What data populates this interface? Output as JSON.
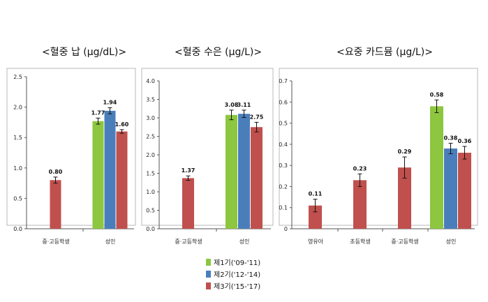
{
  "colors": {
    "series1": "#8dc63f",
    "series2": "#4a7ebb",
    "series3": "#c0504d"
  },
  "legend": [
    {
      "label": "제1기('09-'11)",
      "color": "#8dc63f"
    },
    {
      "label": "제2기('12-'14)",
      "color": "#4a7ebb"
    },
    {
      "label": "제3기('15-'17)",
      "color": "#c0504d"
    }
  ],
  "chart_data": [
    {
      "type": "bar",
      "title": "<혈중 납 (μg/dL)>",
      "categories": [
        "중·고등학생",
        "성인"
      ],
      "yticks": [
        "0.0",
        "0.5",
        "1.0",
        "1.5",
        "2.0",
        "2.5"
      ],
      "ylim": [
        0,
        2.5
      ],
      "series": [
        {
          "name": "제1기('09-'11)",
          "values": [
            null,
            1.77
          ],
          "labels": [
            "",
            "1.77"
          ],
          "err": [
            null,
            0.05
          ]
        },
        {
          "name": "제2기('12-'14)",
          "values": [
            null,
            1.94
          ],
          "labels": [
            "",
            "1.94"
          ],
          "err": [
            null,
            0.05
          ]
        },
        {
          "name": "제3기('15-'17)",
          "values": [
            0.8,
            1.6
          ],
          "labels": [
            "0.80",
            "1.60"
          ],
          "err": [
            0.05,
            0.03
          ]
        }
      ],
      "grid": false
    },
    {
      "type": "bar",
      "title": "<혈중 수은 (μg/L)>",
      "categories": [
        "중·고등학생",
        "성인"
      ],
      "yticks": [
        "0.0",
        "0.5",
        "1.0",
        "1.5",
        "2.0",
        "2.5",
        "3.0",
        "3.5",
        "4.0"
      ],
      "ylim": [
        0,
        4.0
      ],
      "series": [
        {
          "name": "제1기('09-'11)",
          "values": [
            null,
            3.08
          ],
          "labels": [
            "",
            "3.08"
          ],
          "err": [
            null,
            0.13
          ]
        },
        {
          "name": "제2기('12-'14)",
          "values": [
            null,
            3.11
          ],
          "labels": [
            "",
            "3.11"
          ],
          "err": [
            null,
            0.1
          ]
        },
        {
          "name": "제3기('15-'17)",
          "values": [
            1.37,
            2.75
          ],
          "labels": [
            "1.37",
            "2.75"
          ],
          "err": [
            0.06,
            0.13
          ]
        }
      ],
      "grid": false
    },
    {
      "type": "bar",
      "title": "<요중 카드뮴 (μg/L)>",
      "categories": [
        "영유아",
        "초등학생",
        "중·고등학생",
        "성인"
      ],
      "yticks": [
        "0",
        "0.1",
        "0.2",
        "0.3",
        "0.4",
        "0.5",
        "0.6",
        "0.7"
      ],
      "ylim": [
        0,
        0.7
      ],
      "series": [
        {
          "name": "제1기('09-'11)",
          "values": [
            null,
            null,
            null,
            0.58
          ],
          "labels": [
            "",
            "",
            "",
            "0.58"
          ],
          "err": [
            null,
            null,
            null,
            0.03
          ]
        },
        {
          "name": "제2기('12-'14)",
          "values": [
            null,
            null,
            null,
            0.38
          ],
          "labels": [
            "",
            "",
            "",
            "0.38"
          ],
          "err": [
            null,
            null,
            null,
            0.025
          ]
        },
        {
          "name": "제3기('15-'17)",
          "values": [
            0.11,
            0.23,
            0.29,
            0.36
          ],
          "labels": [
            "0.11",
            "0.23",
            "0.29",
            "0.36"
          ],
          "err": [
            0.03,
            0.03,
            0.05,
            0.03
          ]
        }
      ],
      "grid": false
    }
  ]
}
